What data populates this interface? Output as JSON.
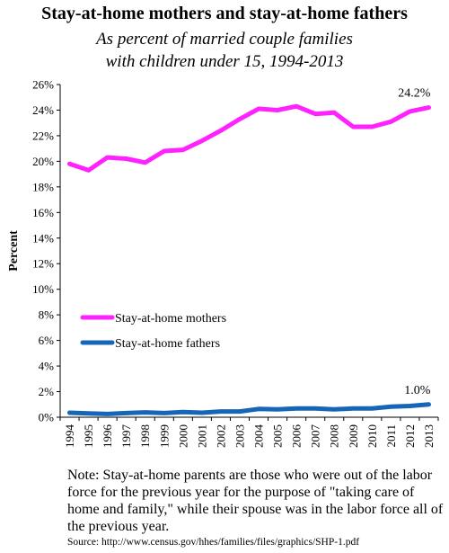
{
  "title": "Stay-at-home mothers and stay-at-home fathers",
  "subtitle_lines": [
    "As percent of married couple families",
    "with children under 15, 1994-2013"
  ],
  "note": "Note: Stay-at-home parents are those who were out of the labor force for the previous year for the purpose of \"taking care of home and family,\" while their spouse was in the labor force all of the previous year.",
  "source": "Source: http://www.census.gov/hhes/families/files/graphics/SHP-1.pdf",
  "chart_data": {
    "type": "line",
    "ylabel": "Percent",
    "ylim": [
      0,
      26
    ],
    "yticks": [
      0,
      2,
      4,
      6,
      8,
      10,
      12,
      14,
      16,
      18,
      20,
      22,
      24,
      26
    ],
    "ytick_format": "%",
    "x": [
      1994,
      1995,
      1996,
      1997,
      1998,
      1999,
      2000,
      2001,
      2002,
      2003,
      2004,
      2005,
      2006,
      2007,
      2008,
      2009,
      2010,
      2011,
      2012,
      2013
    ],
    "grid": false,
    "legend_position": "lower-left",
    "series": [
      {
        "name": "Stay-at-home mothers",
        "color": "#ff22ff",
        "values": [
          19.8,
          19.3,
          20.3,
          20.2,
          19.9,
          20.8,
          20.9,
          21.6,
          22.4,
          23.3,
          24.1,
          24.0,
          24.3,
          23.7,
          23.8,
          22.7,
          22.7,
          23.1,
          23.9,
          24.2
        ],
        "end_label": "24.2%"
      },
      {
        "name": "Stay-at-home fathers",
        "color": "#1666b8",
        "values": [
          0.35,
          0.3,
          0.25,
          0.32,
          0.38,
          0.32,
          0.4,
          0.35,
          0.45,
          0.45,
          0.65,
          0.62,
          0.68,
          0.68,
          0.62,
          0.68,
          0.68,
          0.82,
          0.88,
          1.0
        ],
        "end_label": "1.0%"
      }
    ]
  }
}
